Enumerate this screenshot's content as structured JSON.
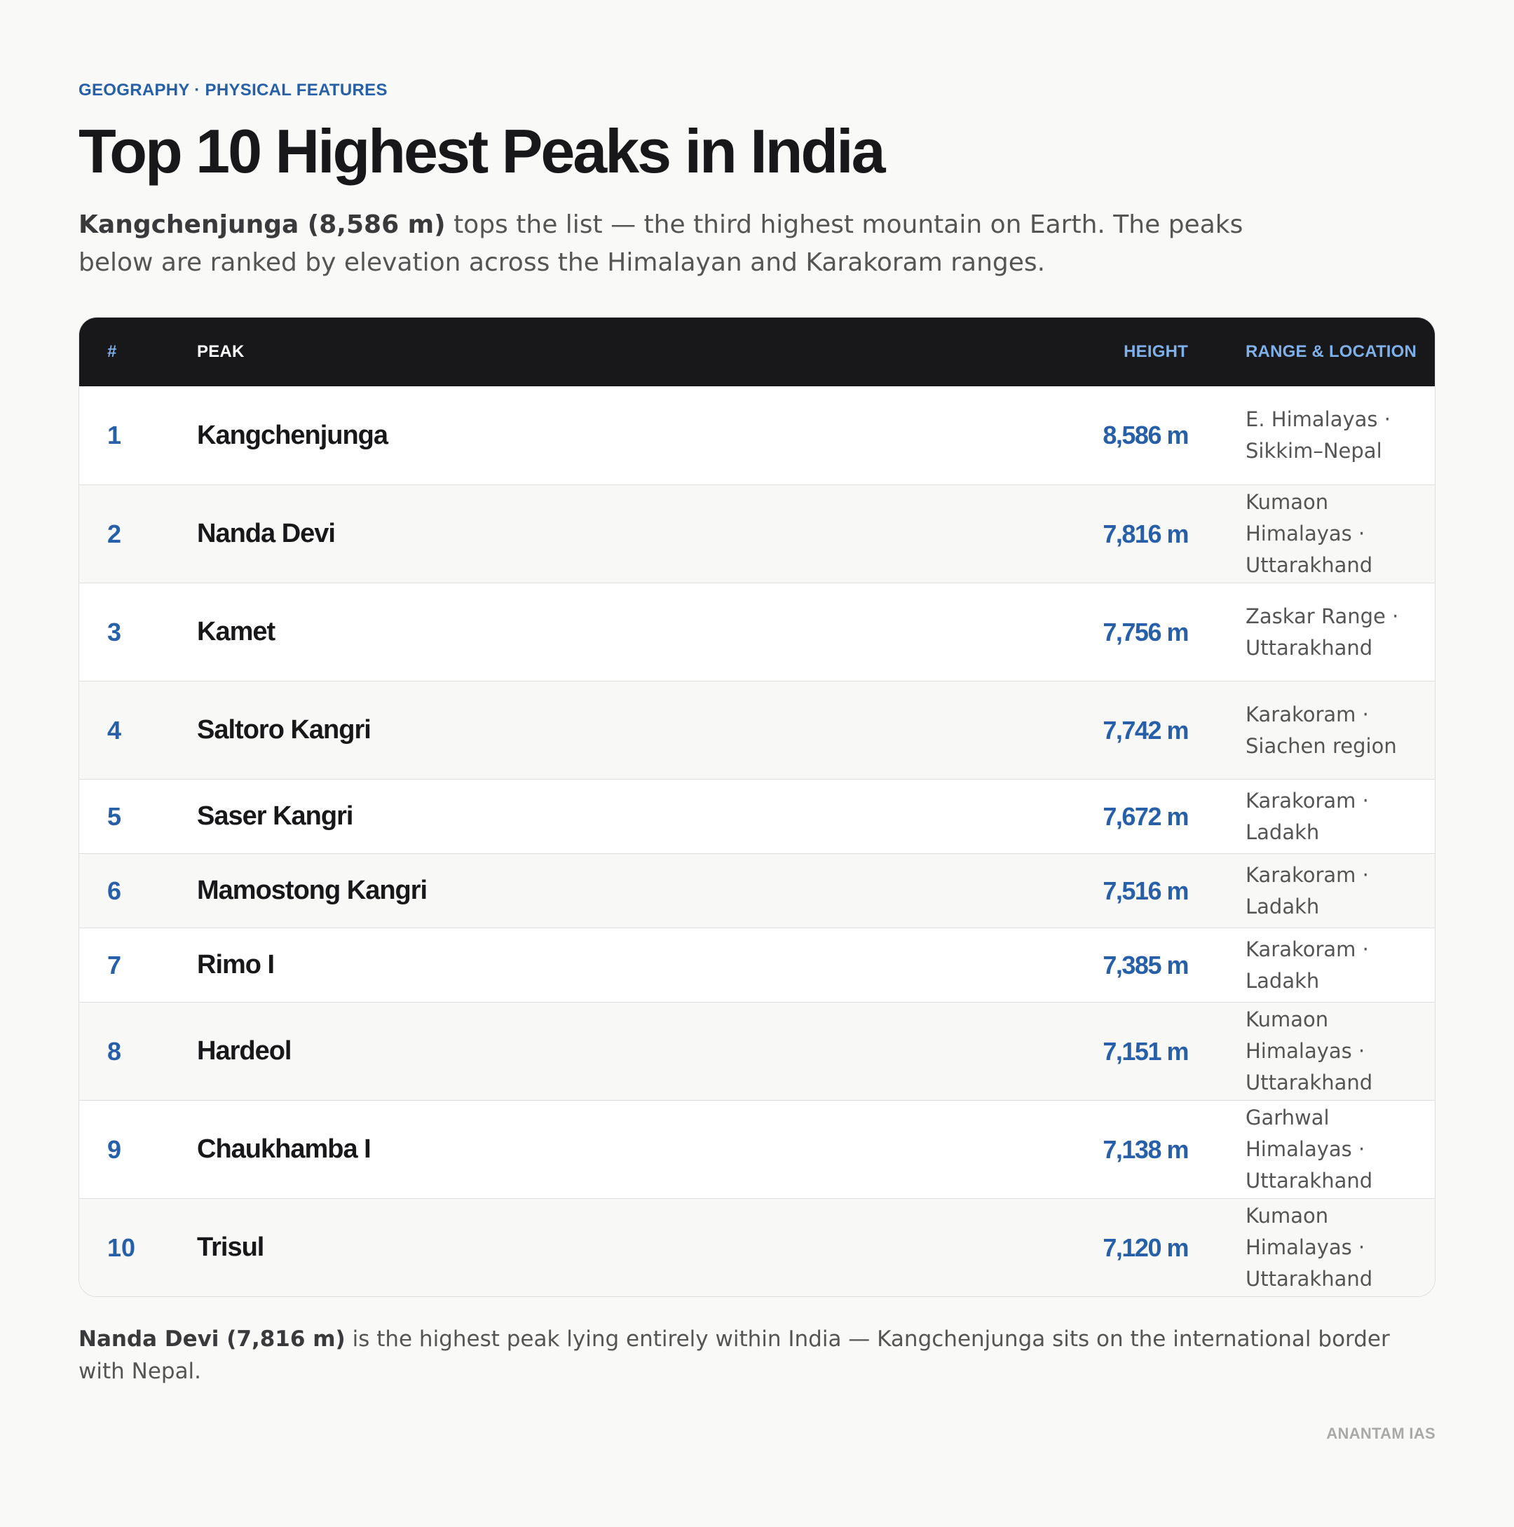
{
  "header": {
    "eyebrow": "GEOGRAPHY · PHYSICAL FEATURES",
    "title": "Top 10 Highest Peaks in India",
    "intro_bold": "Kangchenjunga (8,586 m)",
    "intro_rest": " tops the list — the third highest mountain on Earth. The peaks below are ranked by elevation across the Himalayan and Karakoram ranges."
  },
  "table": {
    "columns": {
      "rank": "#",
      "peak": "PEAK",
      "height": "HEIGHT",
      "range": "RANGE & LOCATION"
    },
    "rows": [
      {
        "rank": "1",
        "peak": "Kangchenjunga",
        "height": "8,586 m",
        "range": "E. Himalayas · Sikkim–Nepal"
      },
      {
        "rank": "2",
        "peak": "Nanda Devi",
        "height": "7,816 m",
        "range": "Kumaon Himalayas · Uttarakhand"
      },
      {
        "rank": "3",
        "peak": "Kamet",
        "height": "7,756 m",
        "range": "Zaskar Range · Uttarakhand"
      },
      {
        "rank": "4",
        "peak": "Saltoro Kangri",
        "height": "7,742 m",
        "range": "Karakoram · Siachen region"
      },
      {
        "rank": "5",
        "peak": "Saser Kangri",
        "height": "7,672 m",
        "range": "Karakoram · Ladakh"
      },
      {
        "rank": "6",
        "peak": "Mamostong Kangri",
        "height": "7,516 m",
        "range": "Karakoram · Ladakh"
      },
      {
        "rank": "7",
        "peak": "Rimo I",
        "height": "7,385 m",
        "range": "Karakoram · Ladakh"
      },
      {
        "rank": "8",
        "peak": "Hardeol",
        "height": "7,151 m",
        "range": "Kumaon Himalayas · Uttarakhand"
      },
      {
        "rank": "9",
        "peak": "Chaukhamba I",
        "height": "7,138 m",
        "range": "Garhwal Himalayas · Uttarakhand"
      },
      {
        "rank": "10",
        "peak": "Trisul",
        "height": "7,120 m",
        "range": "Kumaon Himalayas · Uttarakhand"
      }
    ]
  },
  "footnote": {
    "bold": "Nanda Devi (7,816 m)",
    "rest": " is the highest peak lying entirely within India — Kangchenjunga sits on the international border with Nepal."
  },
  "brand": "ANANTAM IAS",
  "colors": {
    "accent": "#2760a8",
    "header_bg": "#18181a",
    "header_accent": "#7fb0ea",
    "background": "#f9f9f7"
  }
}
